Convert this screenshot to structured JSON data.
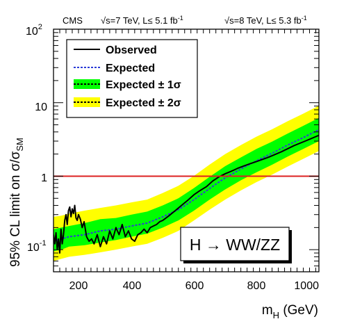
{
  "chart_data": {
    "type": "line",
    "header": {
      "experiment": "CMS",
      "run7": "√s=7 TeV, L≤ 5.1 fb",
      "run8": "√s=8 TeV, L≤ 5.3 fb",
      "lumi_exponent": "-1"
    },
    "xlabel": {
      "main": "m",
      "sub": "H",
      "unit": " (GeV)"
    },
    "ylabel": {
      "main": "95% CL limit on σ/σ",
      "sub": "SM"
    },
    "xlim": [
      150,
      1000
    ],
    "ylim": [
      0.05,
      100
    ],
    "yscale": "log",
    "grid": false,
    "x_ticks": [
      200,
      400,
      600,
      800,
      1000
    ],
    "x_tick_labels": [
      "200",
      "400",
      "600",
      "800",
      "1000"
    ],
    "y_tick_labels": [
      {
        "value": 0.1,
        "base": "10",
        "exp": "-1"
      },
      {
        "value": 1,
        "base": "1",
        "exp": ""
      },
      {
        "value": 10,
        "base": "10",
        "exp": ""
      },
      {
        "value": 100,
        "base": "10",
        "exp": "2"
      }
    ],
    "reference_line": {
      "y": 1,
      "color": "#dd2020"
    },
    "legend": {
      "position": "top-left",
      "entries": [
        {
          "label": "Observed",
          "style": "observed"
        },
        {
          "label": "Expected",
          "style": "expected"
        },
        {
          "label": "Expected ± 1σ",
          "style": "band1"
        },
        {
          "label": "Expected ± 2σ",
          "style": "band2"
        }
      ]
    },
    "annotation": "H → WW/ZZ",
    "colors": {
      "observed": "#000000",
      "expected": "#2b3bd6",
      "band1": "#00ff00",
      "band2": "#ffff00",
      "reference": "#dd2020"
    },
    "series": [
      {
        "name": "Observed",
        "x": [
          150,
          154,
          158,
          162,
          166,
          170,
          174,
          178,
          182,
          186,
          190,
          194,
          198,
          202,
          206,
          210,
          214,
          218,
          222,
          226,
          230,
          236,
          242,
          248,
          256,
          264,
          272,
          280,
          290,
          300,
          310,
          320,
          330,
          340,
          350,
          360,
          370,
          380,
          390,
          400,
          410,
          420,
          430,
          440,
          450,
          460,
          470,
          480,
          490,
          500,
          520,
          540,
          560,
          580,
          600,
          620,
          640,
          660,
          680,
          700,
          720,
          740,
          760,
          780,
          800,
          840,
          880,
          920,
          960,
          1000
        ],
        "y": [
          0.16,
          0.12,
          0.17,
          0.1,
          0.14,
          0.09,
          0.19,
          0.12,
          0.16,
          0.25,
          0.3,
          0.22,
          0.34,
          0.38,
          0.28,
          0.36,
          0.31,
          0.4,
          0.27,
          0.25,
          0.3,
          0.26,
          0.2,
          0.24,
          0.15,
          0.13,
          0.14,
          0.12,
          0.16,
          0.11,
          0.15,
          0.12,
          0.18,
          0.14,
          0.2,
          0.16,
          0.22,
          0.15,
          0.18,
          0.14,
          0.13,
          0.16,
          0.17,
          0.19,
          0.17,
          0.2,
          0.21,
          0.22,
          0.24,
          0.25,
          0.29,
          0.34,
          0.4,
          0.47,
          0.56,
          0.64,
          0.72,
          0.86,
          0.98,
          1.08,
          1.17,
          1.28,
          1.38,
          1.48,
          1.58,
          1.82,
          2.15,
          2.6,
          3.05,
          3.6
        ]
      },
      {
        "name": "Expected",
        "x": [
          150,
          175,
          200,
          250,
          300,
          350,
          400,
          450,
          500,
          550,
          600,
          650,
          700,
          750,
          800,
          850,
          900,
          950,
          1000
        ],
        "y": [
          0.13,
          0.14,
          0.15,
          0.16,
          0.18,
          0.19,
          0.21,
          0.23,
          0.28,
          0.35,
          0.48,
          0.68,
          0.95,
          1.25,
          1.62,
          2.05,
          2.65,
          3.35,
          4.3
        ]
      }
    ],
    "bands": {
      "x": [
        150,
        175,
        200,
        250,
        300,
        350,
        400,
        450,
        500,
        550,
        600,
        650,
        700,
        750,
        800,
        850,
        900,
        950,
        1000
      ],
      "one_sigma_low": [
        0.095,
        0.1,
        0.11,
        0.115,
        0.125,
        0.135,
        0.15,
        0.165,
        0.2,
        0.25,
        0.34,
        0.48,
        0.66,
        0.88,
        1.13,
        1.43,
        1.85,
        2.35,
        3.0
      ],
      "one_sigma_high": [
        0.19,
        0.2,
        0.21,
        0.23,
        0.26,
        0.27,
        0.3,
        0.33,
        0.4,
        0.5,
        0.69,
        0.98,
        1.37,
        1.8,
        2.35,
        2.95,
        3.8,
        4.85,
        6.2
      ],
      "two_sigma_low": [
        0.07,
        0.075,
        0.08,
        0.085,
        0.092,
        0.1,
        0.11,
        0.12,
        0.145,
        0.18,
        0.25,
        0.35,
        0.48,
        0.64,
        0.83,
        1.05,
        1.35,
        1.72,
        2.2
      ],
      "two_sigma_high": [
        0.28,
        0.29,
        0.31,
        0.34,
        0.37,
        0.4,
        0.44,
        0.48,
        0.59,
        0.74,
        1.01,
        1.44,
        2.0,
        2.65,
        3.45,
        4.35,
        5.6,
        7.1,
        9.1
      ]
    }
  }
}
